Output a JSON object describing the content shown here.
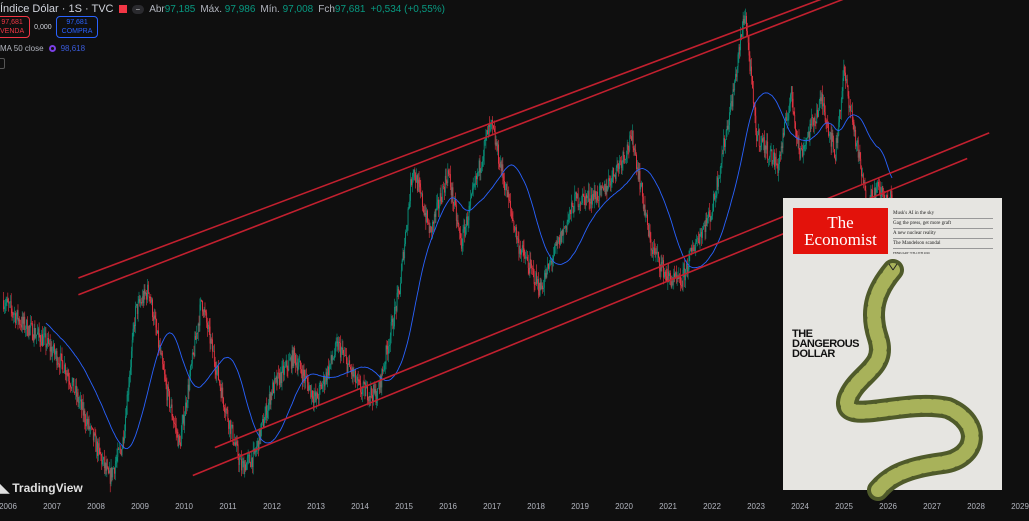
{
  "header": {
    "title": "Índice Dólar · 1S · TVC",
    "open_label": "Abr",
    "open": "97,185",
    "high_label": "Máx.",
    "high": "97,986",
    "low_label": "Mín.",
    "low": "97,008",
    "close_label": "Fch",
    "close": "97,681",
    "change": "+0,534 (+0,55%)"
  },
  "trade": {
    "sell_price": "97,681",
    "sell_label": "VENDA",
    "spread": "0,000",
    "buy_price": "97,681",
    "buy_label": "COMPRA"
  },
  "indicator": {
    "label": "MA 50 close",
    "value": "98,618"
  },
  "logo": "TradingView",
  "colors": {
    "up": "#089981",
    "down": "#f23645",
    "ma": "#2962ff",
    "channel": "#c2202f",
    "bg": "#0f0f0f"
  },
  "chart_data": {
    "type": "candlestick",
    "interval": "weekly",
    "x_tick_labels": [
      "2006",
      "2007",
      "2008",
      "2009",
      "2010",
      "2011",
      "2012",
      "2013",
      "2014",
      "2015",
      "2016",
      "2017",
      "2018",
      "2019",
      "2020",
      "2021",
      "2022",
      "2023",
      "2024",
      "2025",
      "2026",
      "2027",
      "2028",
      "2029"
    ],
    "price_path": [
      [
        2005.9,
        88
      ],
      [
        2006.3,
        86
      ],
      [
        2006.8,
        84.5
      ],
      [
        2007.3,
        82
      ],
      [
        2007.8,
        77
      ],
      [
        2008.1,
        74
      ],
      [
        2008.3,
        72
      ],
      [
        2008.6,
        75
      ],
      [
        2008.9,
        87
      ],
      [
        2009.2,
        89
      ],
      [
        2009.6,
        80
      ],
      [
        2009.9,
        75
      ],
      [
        2010.4,
        88
      ],
      [
        2010.9,
        79
      ],
      [
        2011.3,
        73
      ],
      [
        2011.6,
        74
      ],
      [
        2012.0,
        80
      ],
      [
        2012.5,
        83
      ],
      [
        2013.0,
        79
      ],
      [
        2013.5,
        84
      ],
      [
        2014.0,
        80
      ],
      [
        2014.4,
        79.5
      ],
      [
        2014.9,
        89
      ],
      [
        2015.2,
        100
      ],
      [
        2015.6,
        94
      ],
      [
        2016.0,
        99.5
      ],
      [
        2016.3,
        93
      ],
      [
        2016.9,
        103
      ],
      [
        2017.0,
        103.5
      ],
      [
        2017.6,
        93
      ],
      [
        2018.1,
        89
      ],
      [
        2018.9,
        97
      ],
      [
        2019.5,
        97.5
      ],
      [
        2020.2,
        102.5
      ],
      [
        2020.6,
        93
      ],
      [
        2021.0,
        90
      ],
      [
        2021.3,
        89.5
      ],
      [
        2021.6,
        93
      ],
      [
        2022.0,
        96
      ],
      [
        2022.5,
        107
      ],
      [
        2022.75,
        114
      ],
      [
        2023.0,
        103
      ],
      [
        2023.5,
        100
      ],
      [
        2023.8,
        106.5
      ],
      [
        2024.0,
        101
      ],
      [
        2024.5,
        106
      ],
      [
        2024.8,
        101
      ],
      [
        2025.0,
        108.5
      ],
      [
        2025.2,
        104
      ],
      [
        2025.5,
        97
      ],
      [
        2025.8,
        98
      ],
      [
        2026.0,
        96.5
      ],
      [
        2026.1,
        97.7
      ]
    ],
    "moving_average": {
      "name": "MA 50 close",
      "period": 50
    },
    "trendlines": [
      [
        [
          2007.6,
          90
        ],
        [
          2024.5,
          115
        ]
      ],
      [
        [
          2007.6,
          88.5
        ],
        [
          2025,
          115
        ]
      ],
      [
        [
          2010.7,
          74.8
        ],
        [
          2028.3,
          103
        ]
      ],
      [
        [
          2010.2,
          72.3
        ],
        [
          2027.8,
          100.7
        ]
      ]
    ],
    "xlim": [
      2005.85,
      2029.1
    ],
    "ylim": [
      69.3,
      115.5
    ]
  },
  "cover": {
    "masthead_line1": "The",
    "masthead_line2": "Economist",
    "headlines": [
      "Musk's AI in the sky",
      "Gag the press, get more graft",
      "A new nuclear reality",
      "The Mandelson scandal"
    ],
    "date": "FEBRUARY 7TH-13TH 2026",
    "title": [
      "THE",
      "DANGEROUS",
      "DOLLAR"
    ]
  }
}
